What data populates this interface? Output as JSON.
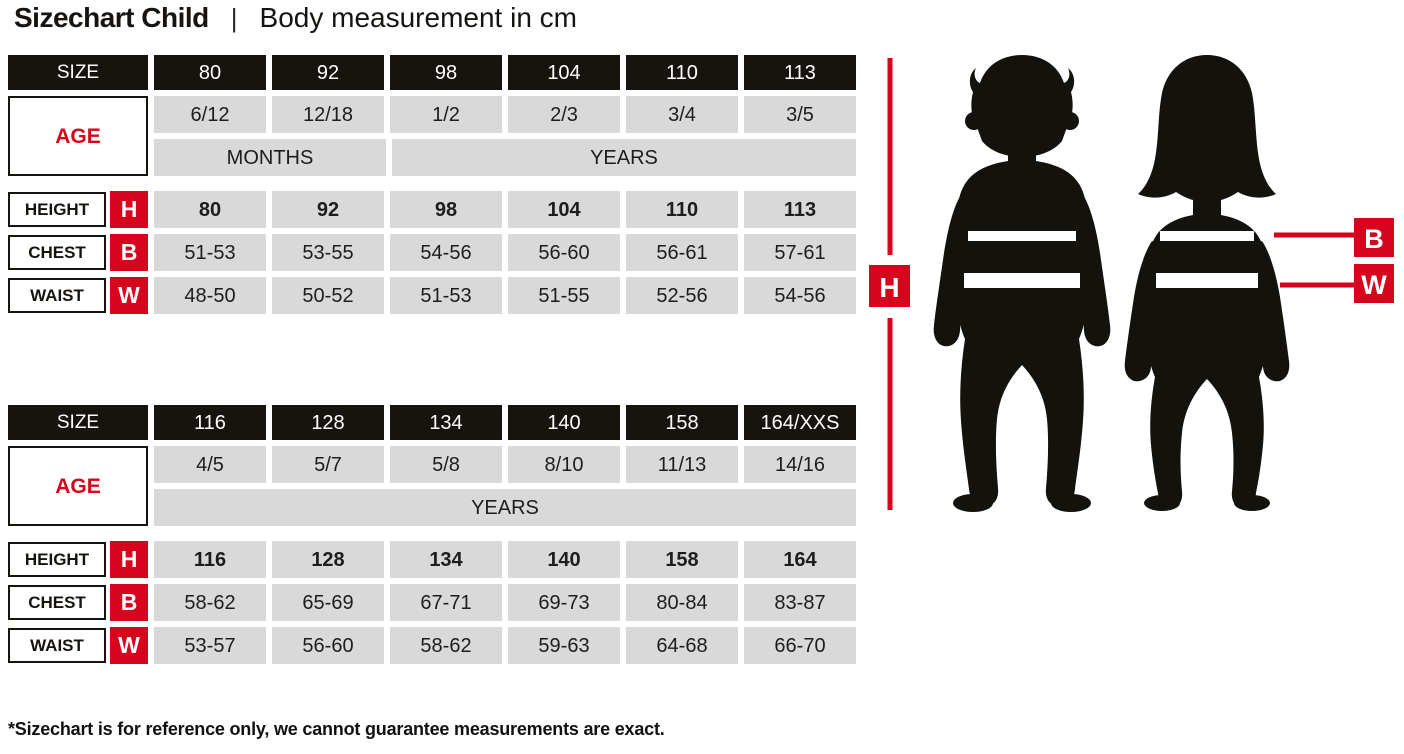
{
  "title": {
    "main": "Sizechart Child",
    "separator": "|",
    "subtitle": "Body measurement in cm"
  },
  "colors": {
    "accent_red": "#d6041c",
    "header_black": "#17140f",
    "cell_gray": "#d9d9d9",
    "silhouette_black": "#14120d"
  },
  "tables": [
    {
      "size_label": "SIZE",
      "sizes": [
        "80",
        "92",
        "98",
        "104",
        "110",
        "113"
      ],
      "age_label": "AGE",
      "ages": [
        "6/12",
        "12/18",
        "1/2",
        "2/3",
        "3/4",
        "3/5"
      ],
      "period_groups": [
        {
          "label": "MONTHS",
          "span": 2
        },
        {
          "label": "YEARS",
          "span": 4
        }
      ],
      "rows": [
        {
          "label": "HEIGHT",
          "letter": "H",
          "bold": true,
          "values": [
            "80",
            "92",
            "98",
            "104",
            "110",
            "113"
          ]
        },
        {
          "label": "CHEST",
          "letter": "B",
          "bold": false,
          "values": [
            "51-53",
            "53-55",
            "54-56",
            "56-60",
            "56-61",
            "57-61"
          ]
        },
        {
          "label": "WAIST",
          "letter": "W",
          "bold": false,
          "values": [
            "48-50",
            "50-52",
            "51-53",
            "51-55",
            "52-56",
            "54-56"
          ]
        }
      ]
    },
    {
      "size_label": "SIZE",
      "sizes": [
        "116",
        "128",
        "134",
        "140",
        "158",
        "164/XXS"
      ],
      "age_label": "AGE",
      "ages": [
        "4/5",
        "5/7",
        "5/8",
        "8/10",
        "11/13",
        "14/16"
      ],
      "period_groups": [
        {
          "label": "YEARS",
          "span": 6
        }
      ],
      "rows": [
        {
          "label": "HEIGHT",
          "letter": "H",
          "bold": true,
          "values": [
            "116",
            "128",
            "134",
            "140",
            "158",
            "164"
          ]
        },
        {
          "label": "CHEST",
          "letter": "B",
          "bold": false,
          "values": [
            "58-62",
            "65-69",
            "67-71",
            "69-73",
            "80-84",
            "83-87"
          ]
        },
        {
          "label": "WAIST",
          "letter": "W",
          "bold": false,
          "values": [
            "53-57",
            "56-60",
            "58-62",
            "59-63",
            "64-68",
            "66-70"
          ]
        }
      ]
    }
  ],
  "figure": {
    "markers": {
      "height": "H",
      "chest": "B",
      "waist": "W"
    }
  },
  "footnote": "*Sizechart is for reference only, we cannot guarantee measurements are exact."
}
